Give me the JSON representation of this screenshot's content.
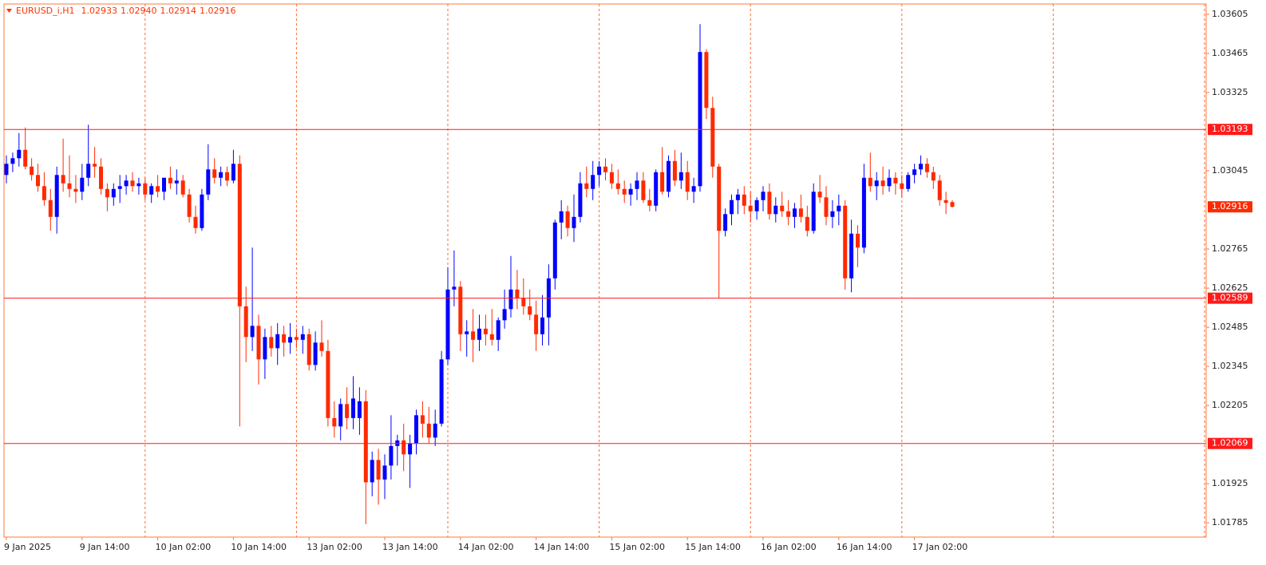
{
  "chart_data": {
    "type": "candlestick",
    "title": "EURUSD_i,H1",
    "quote": [
      "1.02933",
      "1.02940",
      "1.02914",
      "1.02916"
    ],
    "categories": [
      "9 Jan 2025",
      null,
      null,
      null,
      null,
      null,
      null,
      null,
      null,
      null,
      null,
      null,
      "9 Jan 14:00",
      null,
      null,
      null,
      null,
      null,
      null,
      null,
      null,
      null,
      null,
      null,
      "10 Jan 02:00",
      null,
      null,
      null,
      null,
      null,
      null,
      null,
      null,
      null,
      null,
      null,
      "10 Jan 14:00",
      null,
      null,
      null,
      null,
      null,
      null,
      null,
      null,
      null,
      null,
      null,
      "13 Jan 02:00",
      null,
      null,
      null,
      null,
      null,
      null,
      null,
      null,
      null,
      null,
      null,
      "13 Jan 14:00",
      null,
      null,
      null,
      null,
      null,
      null,
      null,
      null,
      null,
      null,
      null,
      "14 Jan 02:00",
      null,
      null,
      null,
      null,
      null,
      null,
      null,
      null,
      null,
      null,
      null,
      "14 Jan 14:00",
      null,
      null,
      null,
      null,
      null,
      null,
      null,
      null,
      null,
      null,
      null,
      "15 Jan 02:00",
      null,
      null,
      null,
      null,
      null,
      null,
      null,
      null,
      null,
      null,
      null,
      "15 Jan 14:00",
      null,
      null,
      null,
      null,
      null,
      null,
      null,
      null,
      null,
      null,
      null,
      "16 Jan 02:00",
      null,
      null,
      null,
      null,
      null,
      null,
      null,
      null,
      null,
      null,
      null,
      "16 Jan 14:00",
      null,
      null,
      null,
      null,
      null,
      null,
      null,
      null,
      null,
      null,
      null,
      "17 Jan 02:00",
      null,
      null,
      null,
      null,
      null,
      null
    ],
    "open": [
      1.0303,
      1.0307,
      1.0309,
      1.0312,
      1.0306,
      1.0303,
      1.0299,
      1.0294,
      1.0288,
      1.0303,
      1.03,
      1.0298,
      1.0297,
      1.0302,
      1.0307,
      1.0306,
      1.0298,
      1.0295,
      1.0298,
      1.0299,
      1.0301,
      1.0299,
      1.03,
      1.0296,
      1.0299,
      1.0297,
      1.0302,
      1.03,
      1.0301,
      1.0296,
      1.0288,
      1.0284,
      1.0296,
      1.0305,
      1.0302,
      1.0304,
      1.0301,
      1.0307,
      1.0256,
      1.0245,
      1.0249,
      1.0237,
      1.0245,
      1.0241,
      1.0246,
      1.0243,
      1.0245,
      1.0244,
      1.0246,
      1.0235,
      1.0243,
      1.024,
      1.0216,
      1.0213,
      1.0221,
      1.0216,
      1.0216,
      1.0222,
      1.0193,
      1.0201,
      1.0194,
      1.0199,
      1.0206,
      1.0208,
      1.0203,
      1.0207,
      1.0217,
      1.0214,
      1.0209,
      1.0214,
      1.0237,
      1.0262,
      1.0263,
      1.0246,
      1.0247,
      1.0244,
      1.0248,
      1.0246,
      1.0244,
      1.0251,
      1.0255,
      1.0262,
      1.0259,
      1.0256,
      1.0253,
      1.0246,
      1.0252,
      1.0266,
      1.0286,
      1.029,
      1.0284,
      1.0288,
      1.03,
      1.0298,
      1.0303,
      1.0306,
      1.0304,
      1.03,
      1.0298,
      1.0296,
      1.0298,
      1.0301,
      1.0294,
      1.0292,
      1.0304,
      1.0297,
      1.0308,
      1.0301,
      1.0304,
      1.0297,
      1.0299,
      1.0347,
      1.0327,
      1.0306,
      1.0283,
      1.0289,
      1.0294,
      1.0296,
      1.0292,
      1.029,
      1.0294,
      1.0297,
      1.0289,
      1.0292,
      1.029,
      1.0288,
      1.0291,
      1.0288,
      1.0283,
      1.0297,
      1.0295,
      1.0288,
      1.029,
      1.0292,
      1.0266,
      1.0282,
      1.0277,
      1.0302,
      1.0299,
      1.0301,
      1.0299,
      1.0302,
      1.03,
      1.0298,
      1.0303,
      1.0305,
      1.0307,
      1.0304,
      1.0301,
      1.0294,
      1.02933
    ],
    "high": [
      1.031,
      1.0311,
      1.0318,
      1.032,
      1.0309,
      1.0307,
      1.0304,
      1.0298,
      1.0306,
      1.0316,
      1.031,
      1.0303,
      1.0307,
      1.0321,
      1.0313,
      1.0309,
      1.03,
      1.03,
      1.0303,
      1.0303,
      1.0304,
      1.0302,
      1.0302,
      1.03,
      1.0303,
      1.0302,
      1.0306,
      1.0305,
      1.0303,
      1.0298,
      1.0292,
      1.0298,
      1.0314,
      1.0309,
      1.0306,
      1.0306,
      1.0312,
      1.031,
      1.0263,
      1.0277,
      1.0253,
      1.0248,
      1.0249,
      1.025,
      1.0249,
      1.025,
      1.0248,
      1.0249,
      1.0248,
      1.0247,
      1.0251,
      1.0244,
      1.0222,
      1.0223,
      1.0227,
      1.0231,
      1.0227,
      1.0226,
      1.0204,
      1.0205,
      1.0203,
      1.0217,
      1.021,
      1.0214,
      1.021,
      1.0219,
      1.0222,
      1.022,
      1.0219,
      1.024,
      1.027,
      1.0276,
      1.0265,
      1.0251,
      1.0255,
      1.0253,
      1.0253,
      1.0255,
      1.0252,
      1.0262,
      1.0274,
      1.0269,
      1.0266,
      1.0262,
      1.0258,
      1.026,
      1.0271,
      1.0287,
      1.0294,
      1.0292,
      1.0296,
      1.0304,
      1.0306,
      1.0308,
      1.0308,
      1.0309,
      1.0307,
      1.0305,
      1.0301,
      1.03,
      1.0304,
      1.0304,
      1.0298,
      1.0305,
      1.0313,
      1.031,
      1.0312,
      1.0311,
      1.0308,
      1.0302,
      1.0357,
      1.0348,
      1.0331,
      1.0307,
      1.0291,
      1.0296,
      1.0298,
      1.0299,
      1.0297,
      1.0295,
      1.0299,
      1.03,
      1.0295,
      1.0297,
      1.0294,
      1.0293,
      1.0296,
      1.0292,
      1.03,
      1.0303,
      1.0299,
      1.0294,
      1.0296,
      1.0294,
      1.0287,
      1.0285,
      1.0307,
      1.0311,
      1.0304,
      1.0306,
      1.0305,
      1.0304,
      1.0303,
      1.0304,
      1.0307,
      1.031,
      1.0309,
      1.0306,
      1.0303,
      1.0297,
      1.0294
    ],
    "low": [
      1.03,
      1.0304,
      1.0306,
      1.0305,
      1.0301,
      1.0297,
      1.0292,
      1.0283,
      1.0282,
      1.0297,
      1.0295,
      1.0293,
      1.0294,
      1.0299,
      1.0302,
      1.0296,
      1.029,
      1.0292,
      1.0293,
      1.0296,
      1.0297,
      1.0296,
      1.0294,
      1.0293,
      1.0295,
      1.0294,
      1.0298,
      1.0296,
      1.0295,
      1.0286,
      1.0282,
      1.0283,
      1.0294,
      1.03,
      1.0299,
      1.0299,
      1.03,
      1.0213,
      1.0236,
      1.024,
      1.0228,
      1.023,
      1.0238,
      1.0235,
      1.0238,
      1.0239,
      1.0241,
      1.0239,
      1.0233,
      1.0233,
      1.0238,
      1.0213,
      1.0209,
      1.0208,
      1.0212,
      1.0212,
      1.021,
      1.0178,
      1.0188,
      1.0185,
      1.0187,
      1.0194,
      1.0199,
      1.0197,
      1.0191,
      1.0203,
      1.0209,
      1.0207,
      1.0206,
      1.0213,
      1.0235,
      1.0256,
      1.024,
      1.0238,
      1.0236,
      1.024,
      1.0242,
      1.0242,
      1.024,
      1.0248,
      1.0252,
      1.0255,
      1.0253,
      1.0251,
      1.024,
      1.0242,
      1.0242,
      1.0262,
      1.028,
      1.0281,
      1.0279,
      1.0286,
      1.0295,
      1.0294,
      1.0299,
      1.0301,
      1.0298,
      1.0296,
      1.0293,
      1.0292,
      1.0294,
      1.0293,
      1.029,
      1.029,
      1.0296,
      1.0295,
      1.0299,
      1.0298,
      1.0294,
      1.0293,
      1.0297,
      1.0323,
      1.0302,
      1.0259,
      1.0281,
      1.0285,
      1.0289,
      1.0289,
      1.0286,
      1.0287,
      1.029,
      1.0287,
      1.0286,
      1.0288,
      1.0285,
      1.0284,
      1.0286,
      1.0281,
      1.0282,
      1.0293,
      1.0285,
      1.0284,
      1.0285,
      1.0262,
      1.0261,
      1.027,
      1.0275,
      1.0297,
      1.0294,
      1.0296,
      1.0297,
      1.0296,
      1.0295,
      1.0297,
      1.03,
      1.0303,
      1.0302,
      1.0298,
      1.0292,
      1.0289,
      1.02914
    ],
    "close": [
      1.0307,
      1.0309,
      1.0312,
      1.0306,
      1.0303,
      1.0299,
      1.0294,
      1.0288,
      1.0303,
      1.03,
      1.0298,
      1.0297,
      1.0302,
      1.0307,
      1.0306,
      1.0298,
      1.0295,
      1.0298,
      1.0299,
      1.0301,
      1.0299,
      1.03,
      1.0296,
      1.0299,
      1.0297,
      1.0302,
      1.03,
      1.0301,
      1.0296,
      1.0288,
      1.0284,
      1.0296,
      1.0305,
      1.0302,
      1.0304,
      1.0301,
      1.0307,
      1.0256,
      1.0245,
      1.0249,
      1.0237,
      1.0245,
      1.0241,
      1.0246,
      1.0243,
      1.0245,
      1.0244,
      1.0246,
      1.0235,
      1.0243,
      1.024,
      1.0216,
      1.0213,
      1.0221,
      1.0216,
      1.0223,
      1.0222,
      1.0193,
      1.0201,
      1.0194,
      1.0199,
      1.0206,
      1.0208,
      1.0203,
      1.0207,
      1.0217,
      1.0214,
      1.0209,
      1.0214,
      1.0237,
      1.0262,
      1.0263,
      1.0246,
      1.0247,
      1.0244,
      1.0248,
      1.0246,
      1.0244,
      1.0251,
      1.0255,
      1.0262,
      1.0259,
      1.0256,
      1.0253,
      1.0246,
      1.0252,
      1.0266,
      1.0286,
      1.029,
      1.0284,
      1.0288,
      1.03,
      1.0298,
      1.0303,
      1.0306,
      1.0304,
      1.03,
      1.0298,
      1.0296,
      1.0298,
      1.0301,
      1.0294,
      1.0292,
      1.0304,
      1.0297,
      1.0308,
      1.0301,
      1.0304,
      1.0297,
      1.0299,
      1.0347,
      1.0327,
      1.0306,
      1.0283,
      1.0289,
      1.0294,
      1.0296,
      1.0292,
      1.029,
      1.0294,
      1.0297,
      1.0289,
      1.0292,
      1.029,
      1.0288,
      1.0291,
      1.0288,
      1.0283,
      1.0297,
      1.0295,
      1.0288,
      1.029,
      1.0292,
      1.0266,
      1.0282,
      1.0277,
      1.0302,
      1.0299,
      1.0301,
      1.0299,
      1.0302,
      1.03,
      1.0298,
      1.0303,
      1.0305,
      1.0307,
      1.0304,
      1.0301,
      1.0294,
      1.0293,
      1.02916
    ],
    "up_color": "#0000ff",
    "down_color": "#ff2a00",
    "levels": [
      1.03193,
      1.02589,
      1.02069
    ],
    "level_color": "#ff1a1a",
    "ylim": [
      1.01734,
      1.03642
    ],
    "yticks": [
      1.03605,
      1.03465,
      1.03325,
      1.03045,
      1.02765,
      1.02625,
      1.02485,
      1.02345,
      1.02205,
      1.01925,
      1.01785
    ],
    "grid": true
  }
}
